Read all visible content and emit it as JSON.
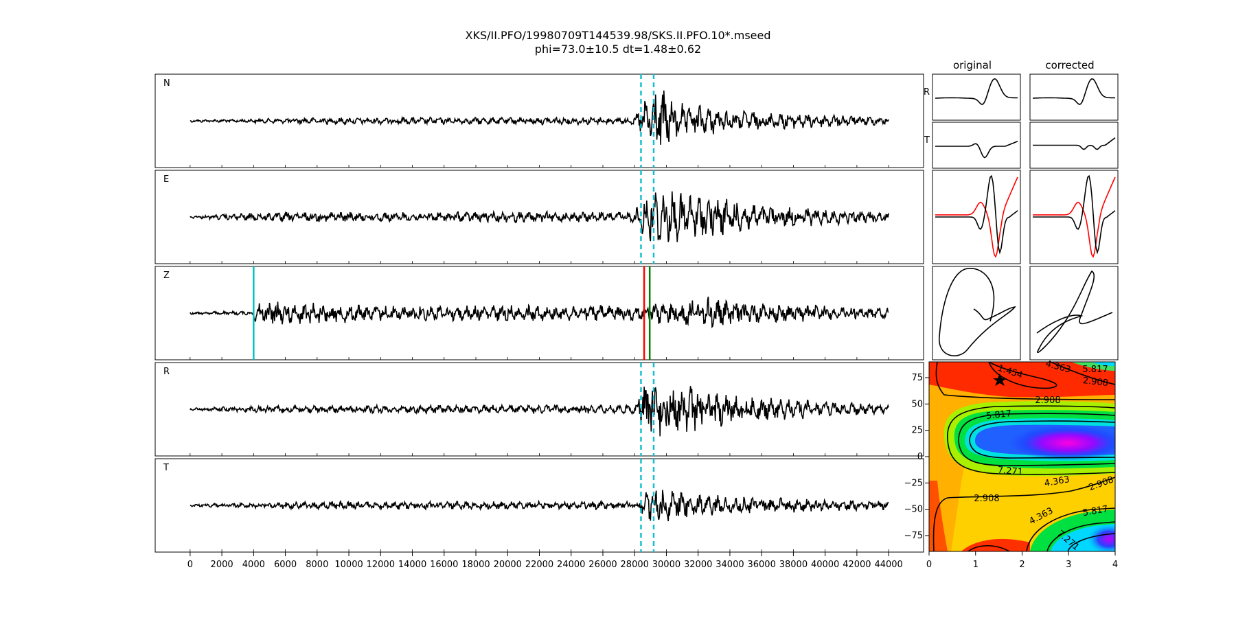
{
  "title": "XKS/II.PFO/19980709T144539.98/SKS.II.PFO.10*.mseed",
  "subtitle": "phi=73.0±10.5 dt=1.48±0.62",
  "col_original": "original",
  "col_corrected": "corrected",
  "colors": {
    "trace": "#000000",
    "window": "#17becf",
    "pick_red": "#ff0000",
    "pick_green": "#008000",
    "cyan_pick": "#00bfbf",
    "particle_red": "#ff0000"
  },
  "chart_data": [
    {
      "type": "line",
      "name": "waveforms",
      "channels": [
        "N",
        "E",
        "Z",
        "R",
        "T"
      ],
      "x_ticks": [
        0,
        2000,
        4000,
        6000,
        8000,
        10000,
        12000,
        14000,
        16000,
        18000,
        20000,
        22000,
        24000,
        26000,
        28000,
        30000,
        32000,
        34000,
        36000,
        38000,
        40000,
        42000,
        44000
      ],
      "xlim": [
        -2200,
        46200
      ],
      "x_end": 44000,
      "window_lines": [
        28400,
        29200
      ],
      "z_picks": {
        "cyan": 4000,
        "red": 28600,
        "green": 28950
      },
      "grid": false
    },
    {
      "type": "line",
      "name": "original",
      "row_labels": [
        "R",
        "T"
      ],
      "panels": [
        "R",
        "T",
        "particle-waveforms",
        "particle-motion"
      ]
    },
    {
      "type": "line",
      "name": "corrected",
      "panels": [
        "R",
        "T",
        "particle-waveforms",
        "particle-motion"
      ]
    },
    {
      "type": "heatmap",
      "name": "error-surface",
      "xlim": [
        0,
        4
      ],
      "ylim": [
        -90,
        90
      ],
      "x_ticks": [
        0,
        1,
        2,
        3,
        4
      ],
      "y_ticks": [
        75,
        50,
        25,
        0,
        -25,
        -50,
        -75
      ],
      "contour_labels": [
        "1.454",
        "2.908",
        "4.363",
        "5.817",
        "7.271"
      ],
      "best": {
        "dt": 1.48,
        "phi": 73.0
      },
      "colormap": "hsv-rainbow"
    }
  ]
}
